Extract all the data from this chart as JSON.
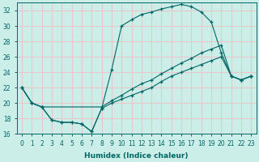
{
  "xlabel": "Humidex (Indice chaleur)",
  "bg_color": "#cceee8",
  "grid_color": "#e8c8c8",
  "line_color": "#006666",
  "xlim": [
    -0.5,
    23.5
  ],
  "ylim": [
    16,
    33
  ],
  "yticks": [
    16,
    18,
    20,
    22,
    24,
    26,
    28,
    30,
    32
  ],
  "xticks": [
    0,
    1,
    2,
    3,
    4,
    5,
    6,
    7,
    8,
    9,
    10,
    11,
    12,
    13,
    14,
    15,
    16,
    17,
    18,
    19,
    20,
    21,
    22,
    23
  ],
  "line1_x": [
    0,
    1,
    2,
    3,
    4,
    5,
    6,
    7,
    8,
    9,
    10,
    11,
    12,
    13,
    14,
    15,
    16,
    17,
    18,
    19,
    20,
    21,
    22,
    23
  ],
  "line1_y": [
    22.0,
    20.0,
    19.5,
    17.8,
    17.5,
    17.5,
    17.3,
    16.3,
    19.3,
    24.3,
    30.0,
    30.8,
    31.5,
    31.8,
    32.2,
    32.5,
    32.8,
    32.5,
    31.8,
    30.5,
    26.5,
    23.5,
    23.0,
    23.5
  ],
  "line2_x": [
    0,
    1,
    2,
    8,
    9,
    10,
    11,
    12,
    13,
    14,
    15,
    16,
    17,
    18,
    19,
    20,
    21,
    22,
    23
  ],
  "line2_y": [
    22.0,
    20.0,
    19.5,
    19.5,
    20.3,
    21.0,
    21.8,
    22.5,
    23.0,
    23.8,
    24.5,
    25.2,
    25.8,
    26.5,
    27.0,
    27.5,
    23.5,
    23.0,
    23.5
  ],
  "line3_x": [
    0,
    1,
    2,
    3,
    4,
    5,
    6,
    7,
    8,
    9,
    10,
    11,
    12,
    13,
    14,
    15,
    16,
    17,
    18,
    19,
    20,
    21,
    22,
    23
  ],
  "line3_y": [
    22.0,
    20.0,
    19.5,
    17.8,
    17.5,
    17.5,
    17.3,
    16.3,
    19.3,
    20.0,
    20.5,
    21.0,
    21.5,
    22.0,
    22.8,
    23.5,
    24.0,
    24.5,
    25.0,
    25.5,
    26.0,
    23.5,
    23.0,
    23.5
  ]
}
